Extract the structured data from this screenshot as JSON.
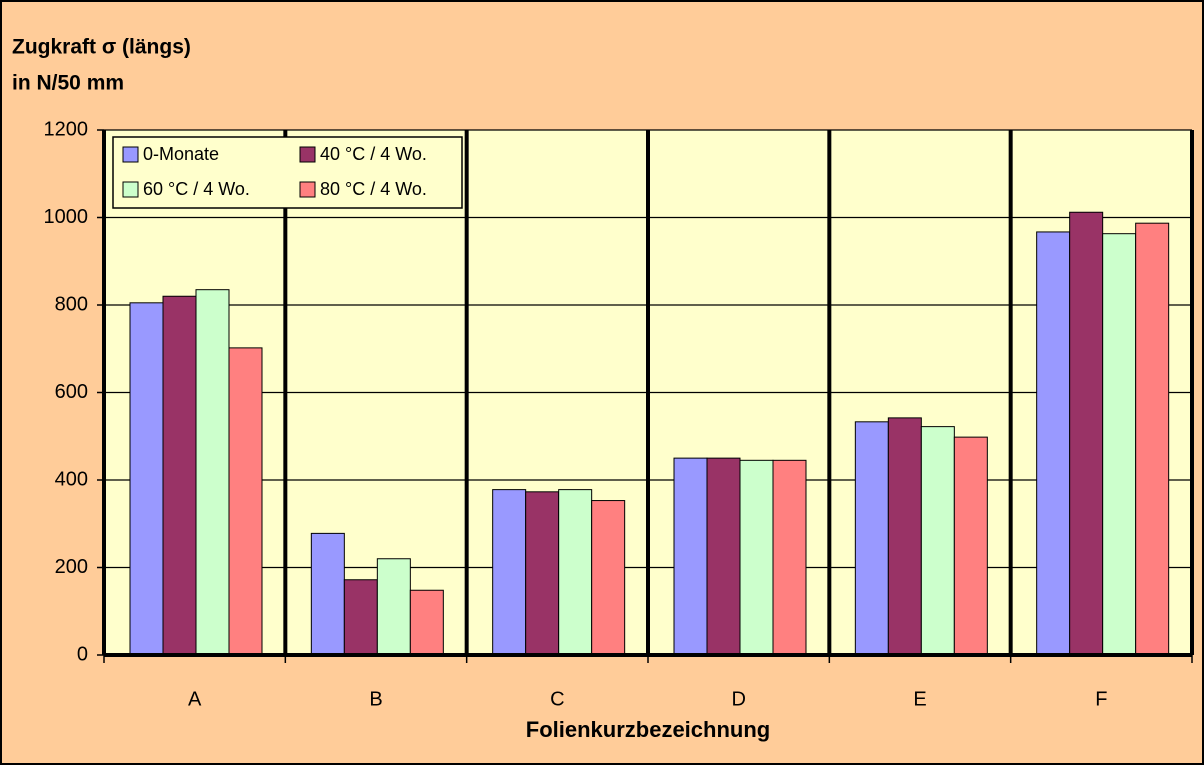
{
  "chart_data": {
    "type": "bar",
    "ylabel": [
      "Zugkraft σ (längs)",
      "in N/50 mm"
    ],
    "xlabel": "Folienkurzbezeichnung",
    "categories": [
      "A",
      "B",
      "C",
      "D",
      "E",
      "F"
    ],
    "series": [
      {
        "name": "0-Monate",
        "color": "#9999ff",
        "values": [
          805,
          278,
          378,
          450,
          533,
          967
        ]
      },
      {
        "name": "40 °C / 4 Wo.",
        "color": "#993366",
        "values": [
          820,
          172,
          373,
          450,
          542,
          1012
        ]
      },
      {
        "name": "60 °C / 4 Wo.",
        "color": "#ccffcc",
        "values": [
          835,
          220,
          378,
          445,
          522,
          963
        ]
      },
      {
        "name": "80 °C / 4 Wo.",
        "color": "#ff8080",
        "values": [
          702,
          148,
          353,
          445,
          498,
          987
        ]
      }
    ],
    "ylim": [
      0,
      1200
    ],
    "yticks": [
      0,
      200,
      400,
      600,
      800,
      1000,
      1200
    ],
    "grid": true,
    "legend": "top-left"
  }
}
